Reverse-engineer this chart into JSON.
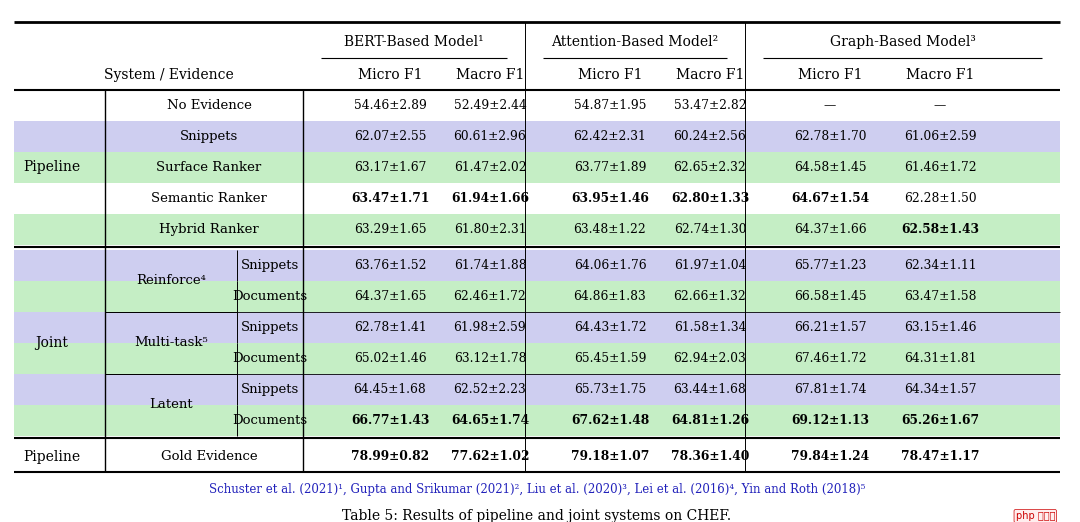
{
  "title": "Table 5: Results of pipeline and joint systems on CHEF.",
  "footnote": "Schuster et al. (2021)¹, Gupta and Srikumar (2021)², Liu et al. (2020)³, Lei et al. (2016)⁴, Yin and Roth (2018)⁵",
  "rows": [
    {
      "system": "Pipeline",
      "evidence": "No Evidence",
      "sub": "",
      "vals": [
        "54.46±2.89",
        "52.49±2.44",
        "54.87±1.95",
        "53.47±2.82",
        "—",
        "—"
      ],
      "bold": [],
      "bg": "white",
      "group": "pipeline"
    },
    {
      "system": "",
      "evidence": "Snippets",
      "sub": "",
      "vals": [
        "62.07±2.55",
        "60.61±2.96",
        "62.42±2.31",
        "60.24±2.56",
        "62.78±1.70",
        "61.06±2.59"
      ],
      "bold": [],
      "bg": "lavender",
      "group": "pipeline"
    },
    {
      "system": "",
      "evidence": "Surface Ranker",
      "sub": "",
      "vals": [
        "63.17±1.67",
        "61.47±2.02",
        "63.77±1.89",
        "62.65±2.32",
        "64.58±1.45",
        "61.46±1.72"
      ],
      "bold": [],
      "bg": "green",
      "group": "pipeline"
    },
    {
      "system": "",
      "evidence": "Semantic Ranker",
      "sub": "",
      "vals": [
        "63.47±1.71",
        "61.94±1.66",
        "63.95±1.46",
        "62.80±1.33",
        "64.67±1.54",
        "62.28±1.50"
      ],
      "bold": [
        0,
        1,
        2,
        3,
        4
      ],
      "bg": "white",
      "group": "pipeline"
    },
    {
      "system": "",
      "evidence": "Hybrid Ranker",
      "sub": "",
      "vals": [
        "63.29±1.65",
        "61.80±2.31",
        "63.48±1.22",
        "62.74±1.30",
        "64.37±1.66",
        "62.58±1.43"
      ],
      "bold": [
        5
      ],
      "bg": "green",
      "group": "pipeline"
    },
    {
      "system": "Joint",
      "evidence": "Reinforce⁴",
      "sub": "Snippets",
      "vals": [
        "63.76±1.52",
        "61.74±1.88",
        "64.06±1.76",
        "61.97±1.04",
        "65.77±1.23",
        "62.34±1.11"
      ],
      "bold": [],
      "bg": "lavender",
      "group": "joint"
    },
    {
      "system": "",
      "evidence": "",
      "sub": "Documents",
      "vals": [
        "64.37±1.65",
        "62.46±1.72",
        "64.86±1.83",
        "62.66±1.32",
        "66.58±1.45",
        "63.47±1.58"
      ],
      "bold": [],
      "bg": "green",
      "group": "joint"
    },
    {
      "system": "",
      "evidence": "Multi-task⁵",
      "sub": "Snippets",
      "vals": [
        "62.78±1.41",
        "61.98±2.59",
        "64.43±1.72",
        "61.58±1.34",
        "66.21±1.57",
        "63.15±1.46"
      ],
      "bold": [],
      "bg": "lavender",
      "group": "joint"
    },
    {
      "system": "",
      "evidence": "",
      "sub": "Documents",
      "vals": [
        "65.02±1.46",
        "63.12±1.78",
        "65.45±1.59",
        "62.94±2.03",
        "67.46±1.72",
        "64.31±1.81"
      ],
      "bold": [],
      "bg": "green",
      "group": "joint"
    },
    {
      "system": "",
      "evidence": "Latent",
      "sub": "Snippets",
      "vals": [
        "64.45±1.68",
        "62.52±2.23",
        "65.73±1.75",
        "63.44±1.68",
        "67.81±1.74",
        "64.34±1.57"
      ],
      "bold": [],
      "bg": "lavender",
      "group": "joint"
    },
    {
      "system": "",
      "evidence": "",
      "sub": "Documents",
      "vals": [
        "66.77±1.43",
        "64.65±1.74",
        "67.62±1.48",
        "64.81±1.26",
        "69.12±1.13",
        "65.26±1.67"
      ],
      "bold": [
        0,
        1,
        2,
        3,
        4,
        5
      ],
      "bg": "green",
      "group": "joint"
    },
    {
      "system": "Pipeline",
      "evidence": "Gold Evidence",
      "sub": "",
      "vals": [
        "78.99±0.82",
        "77.62±1.02",
        "79.18±1.07",
        "78.36±1.40",
        "79.84±1.24",
        "78.47±1.17"
      ],
      "bold": [
        0,
        1,
        2,
        3,
        4,
        5
      ],
      "bg": "white",
      "group": "gold"
    }
  ],
  "bg_colors": {
    "white": "#FFFFFF",
    "lavender": "#CECEF0",
    "green": "#C5EEC5"
  },
  "footnote_color": "#2222BB",
  "col_group_headers": [
    "BERT-Based Model¹",
    "Attention-Based Model²",
    "Graph-Based Model³"
  ],
  "col_sub_headers": [
    "Micro F1",
    "Macro F1",
    "Micro F1",
    "Macro F1",
    "Micro F1",
    "Macro F1"
  ]
}
